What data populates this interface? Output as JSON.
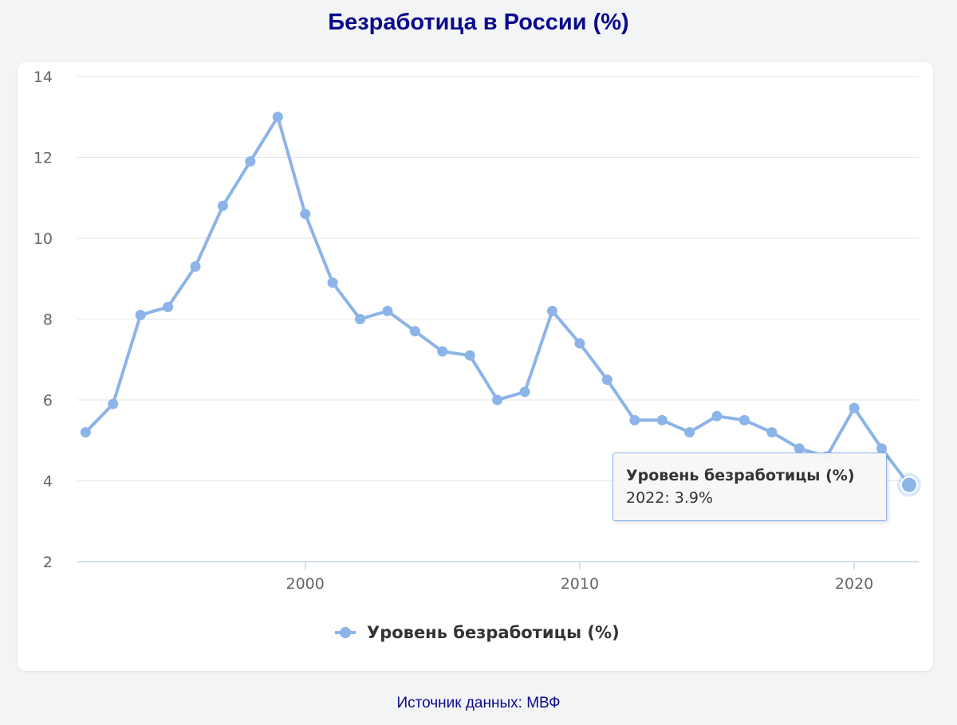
{
  "page": {
    "title": "Безработица в России (%)",
    "source_prefix": "Источник данных:",
    "source_link": "МВФ"
  },
  "colors": {
    "title": "#0a0a8c",
    "series": "#8cb4e8",
    "grid": "#e6e6e6",
    "axis": "#ccd6eb",
    "tick_text": "#666666",
    "background": "#f3f4f6",
    "card": "#ffffff"
  },
  "tooltip": {
    "series_name": "Уровень безработицы (%)",
    "point_label": "2022: 3.9%"
  },
  "chart_data": {
    "type": "line",
    "title": "",
    "xlabel": "",
    "ylabel": "",
    "xlim": [
      1992,
      2022
    ],
    "ylim": [
      2,
      14
    ],
    "yticks": [
      2,
      4,
      6,
      8,
      10,
      12,
      14
    ],
    "xticks": [
      2000,
      2010,
      2020
    ],
    "grid": true,
    "legend_position": "bottom-center",
    "x": [
      1992,
      1993,
      1994,
      1995,
      1996,
      1997,
      1998,
      1999,
      2000,
      2001,
      2002,
      2003,
      2004,
      2005,
      2006,
      2007,
      2008,
      2009,
      2010,
      2011,
      2012,
      2013,
      2014,
      2015,
      2016,
      2017,
      2018,
      2019,
      2020,
      2021,
      2022
    ],
    "series": [
      {
        "name": "Уровень безработицы (%)",
        "values": [
          5.2,
          5.9,
          8.1,
          8.3,
          9.3,
          10.8,
          11.9,
          13.0,
          10.6,
          8.9,
          8.0,
          8.2,
          7.7,
          7.2,
          7.1,
          6.0,
          6.2,
          8.2,
          7.4,
          6.5,
          5.5,
          5.5,
          5.2,
          5.6,
          5.5,
          5.2,
          4.8,
          4.6,
          5.8,
          4.8,
          3.9
        ]
      }
    ],
    "highlighted_point": {
      "x": 2022,
      "y": 3.9
    }
  }
}
